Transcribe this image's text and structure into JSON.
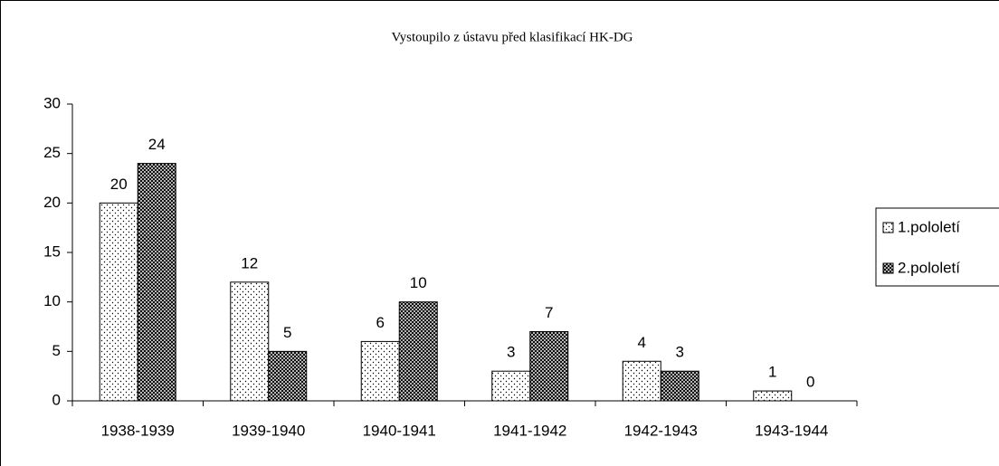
{
  "chart_data": {
    "type": "bar",
    "title": "Vystoupilo z ústavu před klasifikací HK-DG",
    "categories": [
      "1938-1939",
      "1939-1940",
      "1940-1941",
      "1941-1942",
      "1942-1943",
      "1943-1944"
    ],
    "series": [
      {
        "name": "1.pololetí",
        "color": "#ffffff",
        "values": [
          20,
          12,
          6,
          3,
          4,
          1
        ]
      },
      {
        "name": "2.pololetí",
        "color": "#555555",
        "values": [
          24,
          5,
          10,
          7,
          3,
          0
        ]
      }
    ],
    "ylim": [
      0,
      30
    ],
    "yticks": [
      0,
      5,
      10,
      15,
      20,
      25,
      30
    ],
    "grid": false,
    "legend": "right"
  }
}
